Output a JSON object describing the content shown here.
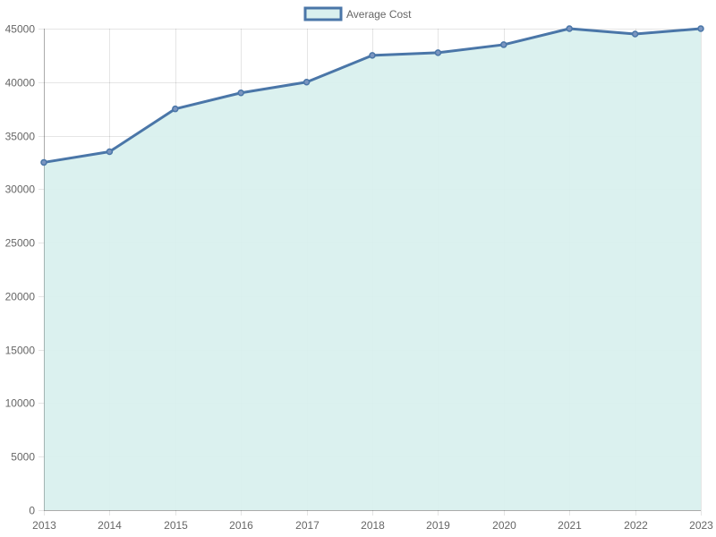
{
  "chart_data": {
    "type": "area",
    "title": "",
    "xlabel": "",
    "ylabel": "",
    "x": [
      "2013",
      "2014",
      "2015",
      "2016",
      "2017",
      "2018",
      "2019",
      "2020",
      "2021",
      "2022",
      "2023"
    ],
    "series": [
      {
        "name": "Average Cost",
        "values": [
          32500,
          33500,
          37500,
          39000,
          40000,
          42500,
          42750,
          43500,
          45000,
          44500,
          45000
        ],
        "line_color": "#4a76a8",
        "fill_color": "#d9f0ee"
      }
    ],
    "ylim": [
      0,
      45000
    ],
    "ytick_step": 5000,
    "yticks": [
      "0",
      "5000",
      "10000",
      "15000",
      "20000",
      "25000",
      "30000",
      "35000",
      "40000",
      "45000"
    ],
    "grid": true,
    "legend_position": "top-center"
  }
}
